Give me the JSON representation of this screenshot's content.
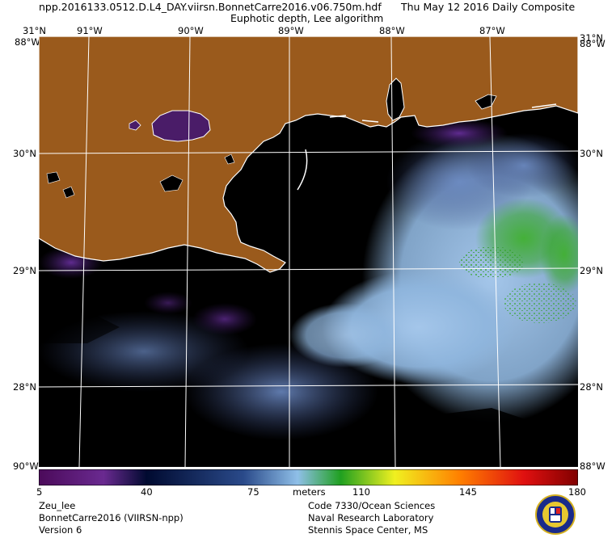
{
  "header": {
    "filename": "npp.2016133.0512.D.L4_DAY.viirsn.BonnetCarre2016.v06.750m.hdf",
    "date": "Thu May 12 2016 Daily Composite",
    "product": "Euphotic depth, Lee algorithm"
  },
  "map": {
    "lon_ticks": [
      "91°W",
      "90°W",
      "89°W",
      "88°W",
      "87°W"
    ],
    "lat_ticks": [
      "30°N",
      "29°N",
      "28°N"
    ],
    "corner_top_left": "31°N",
    "corner_top_right": "31°N",
    "corner_edge_label": "88°W",
    "corner_bottom_left": "90°W",
    "corner_bottom_right": "88°W",
    "colors": {
      "land": "#9a5a1c",
      "ocean_dark": "#000000",
      "lake": "#4a1c68",
      "shelf_purple": "#5a2a80",
      "light_blue": "#8fb6de",
      "mid_blue": "#5a78b0",
      "green": "#3aa830",
      "grid": "#ffffff"
    }
  },
  "colorbar": {
    "labels": [
      "5",
      "40",
      "75",
      "110",
      "145",
      "180"
    ],
    "units": "meters",
    "colors": [
      "#4b0a5a",
      "#6a2a90",
      "#000a30",
      "#2a4a8a",
      "#8fbfe8",
      "#20a020",
      "#f0f020",
      "#ff8000",
      "#e01010",
      "#800000"
    ]
  },
  "footer": {
    "left": [
      "Zeu_lee",
      "BonnetCarre2016 (VIIRSN-npp)",
      "Version 6"
    ],
    "right": [
      "Code 7330/Ocean Sciences",
      "Naval Research Laboratory",
      "Stennis Space Center, MS"
    ]
  }
}
